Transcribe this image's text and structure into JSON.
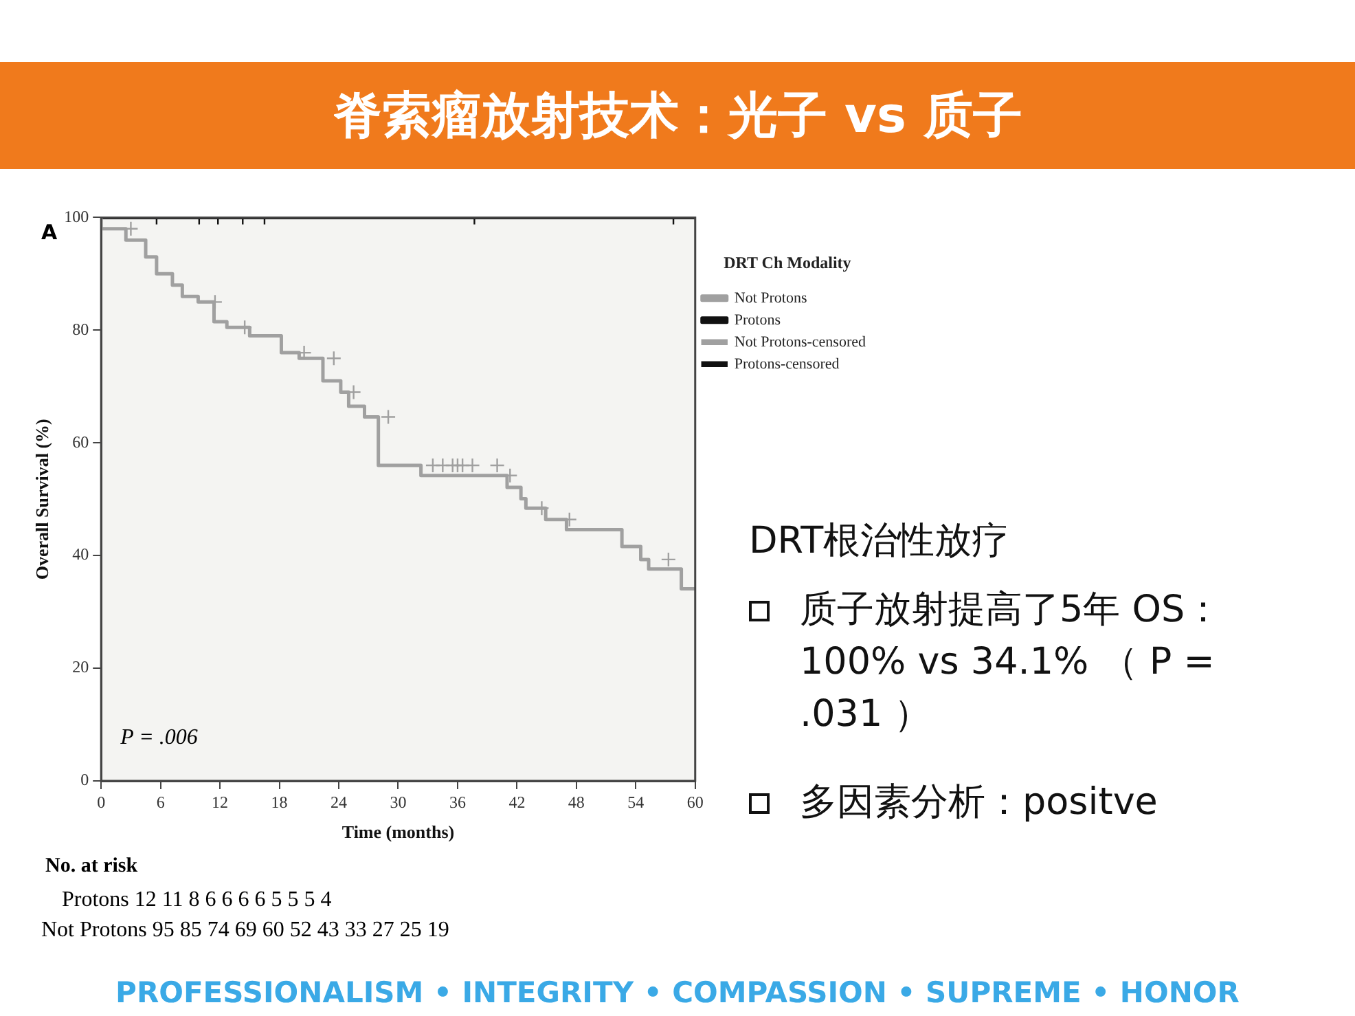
{
  "chart_data": {
    "type": "step",
    "title": "脊索瘤放射技术：光子 vs 质子",
    "xlabel": "Time (months)",
    "ylabel": "Overall Survival (%)",
    "legend_title": "DRT Ch Modality",
    "xlim": [
      0,
      60
    ],
    "xticks": [
      0,
      6,
      12,
      18,
      24,
      30,
      36,
      42,
      48,
      54,
      60
    ],
    "ylim": [
      0,
      100
    ],
    "yticks": [
      0,
      20,
      40,
      60,
      80,
      100
    ],
    "grid": false,
    "legend": "top right",
    "series": [
      {
        "name": "Not Protons",
        "color": "#a0a0a0",
        "x": [
          0,
          2.5,
          4.5,
          5.6,
          7.2,
          8.2,
          9.8,
          11.4,
          12.7,
          15,
          18.2,
          20,
          22.4,
          24.2,
          25,
          26.6,
          28,
          32.3,
          41,
          42.4,
          42.9,
          44.9,
          47,
          52.6,
          54.5,
          55.3,
          58.6,
          58.9,
          60
        ],
        "values": [
          100,
          98,
          96,
          93,
          90,
          88,
          86,
          85,
          81.5,
          80.5,
          79,
          76,
          75,
          71,
          69,
          66.5,
          64.6,
          56,
          54.2,
          52.1,
          50.1,
          48.4,
          46.4,
          44.6,
          41.6,
          39.3,
          37.6,
          34.1,
          34.1
        ]
      },
      {
        "name": "Protons",
        "color": "#111111",
        "x": [
          0,
          60
        ],
        "values": [
          100,
          100
        ]
      },
      {
        "name": "Not Protons-censored",
        "type": "scatter",
        "marker": "cross",
        "color": "#a0a0a0",
        "x": [
          3,
          11.5,
          14.5,
          20.5,
          23.5,
          25.5,
          29,
          33.5,
          34.5,
          35.5,
          36,
          36.5,
          37.5,
          40,
          41.3,
          44.5,
          47.3,
          57.3
        ],
        "values": [
          98,
          85,
          80.5,
          76,
          75,
          69,
          64.6,
          56,
          56,
          56,
          56,
          56,
          56,
          56,
          54.2,
          48.4,
          46.4,
          39.3
        ]
      },
      {
        "name": "Protons-censored",
        "type": "scatter",
        "marker": "cross",
        "color": "#111111",
        "x": [
          5.6,
          9.9,
          11.8,
          14.3,
          16.5,
          37.7,
          57.8
        ],
        "values": [
          100,
          100,
          100,
          100,
          100,
          100,
          100
        ]
      }
    ],
    "annotations": [
      "A",
      "P = .006",
      "No. at risk",
      "Protons 12 11 8 6 6 6 6 5 5 5 4",
      "Not Protons 95 85 74 69 60 52 43 33 27 25 19",
      "DRT根治性放疗",
      "质子放射提高了5年 OS：100% vs 34.1% （ P = .031 ）",
      "多因素分析：positve",
      "PROFESSIONALISM • INTEGRITY • COMPASSION • SUPREME • HONOR"
    ]
  }
}
